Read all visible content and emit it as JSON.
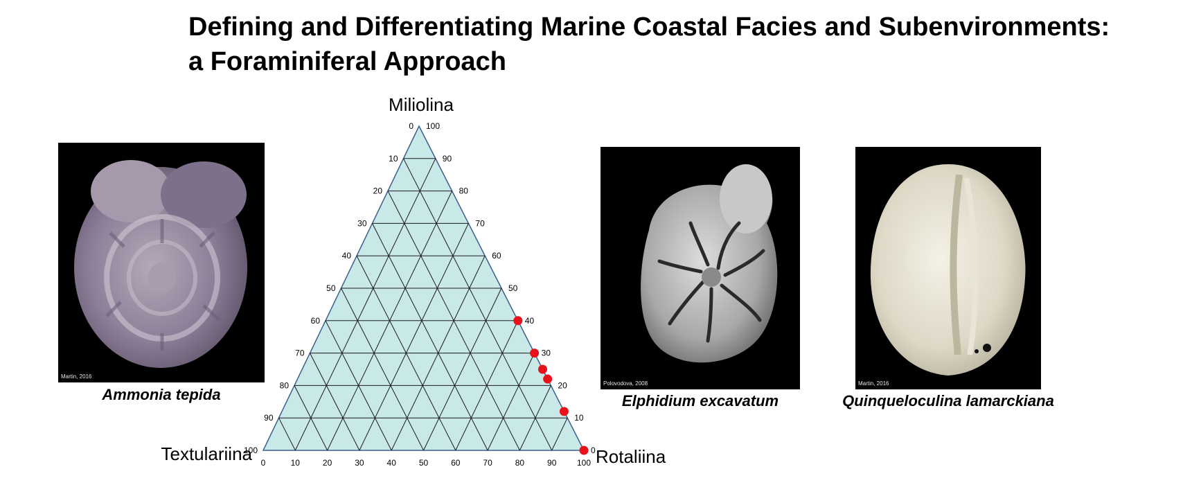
{
  "title": {
    "line1": "Defining and Differentiating Marine Coastal Facies and Subenvironments:",
    "line2": "a Foraminiferal Approach"
  },
  "ternary": {
    "vertex_top": "Miliolina",
    "vertex_left": "Textulariina",
    "vertex_right": "Rotaliina",
    "ticks": [
      "0",
      "10",
      "20",
      "30",
      "40",
      "50",
      "60",
      "70",
      "80",
      "90",
      "100"
    ],
    "fill_color": "#c9e8e8",
    "point_color": "#e8131a",
    "points_miliolina_pct": [
      40,
      30,
      25,
      22,
      12,
      0
    ]
  },
  "specimens": [
    {
      "caption": "Ammonia tepida",
      "credit": "Martin, 2016"
    },
    {
      "caption": "Elphidium excavatum",
      "credit": "Polovodova, 2008"
    },
    {
      "caption": "Quinqueloculina lamarckiana",
      "credit": "Martin, 2016"
    }
  ]
}
